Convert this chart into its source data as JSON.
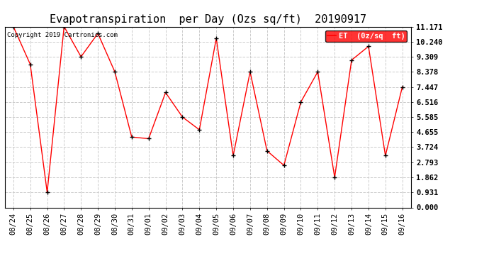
{
  "title": "Evapotranspiration  per Day (Ozs sq/ft)  20190917",
  "copyright": "Copyright 2019 Cartronics.com",
  "legend_label": "ET  (0z/sq  ft)",
  "x_labels": [
    "08/24",
    "08/25",
    "08/26",
    "08/27",
    "08/28",
    "08/29",
    "08/30",
    "08/31",
    "09/01",
    "09/02",
    "09/03",
    "09/04",
    "09/05",
    "09/06",
    "09/07",
    "09/08",
    "09/09",
    "09/10",
    "09/11",
    "09/12",
    "09/13",
    "09/14",
    "09/15",
    "09/16"
  ],
  "y_values": [
    11.171,
    8.84,
    0.931,
    11.171,
    9.309,
    10.75,
    8.378,
    4.35,
    4.25,
    7.1,
    5.585,
    4.8,
    10.45,
    3.2,
    8.378,
    3.5,
    2.6,
    6.516,
    8.378,
    1.862,
    9.1,
    9.95,
    3.2,
    7.447
  ],
  "line_color": "red",
  "marker": "+",
  "marker_color": "black",
  "background_color": "#ffffff",
  "grid_color": "#cccccc",
  "ylim": [
    0.0,
    11.171
  ],
  "yticks": [
    0.0,
    0.931,
    1.862,
    2.793,
    3.724,
    4.655,
    5.585,
    6.516,
    7.447,
    8.378,
    9.309,
    10.24,
    11.171
  ],
  "title_fontsize": 11,
  "axis_fontsize": 7.5,
  "legend_fontsize": 7.5,
  "copyright_fontsize": 6.5
}
